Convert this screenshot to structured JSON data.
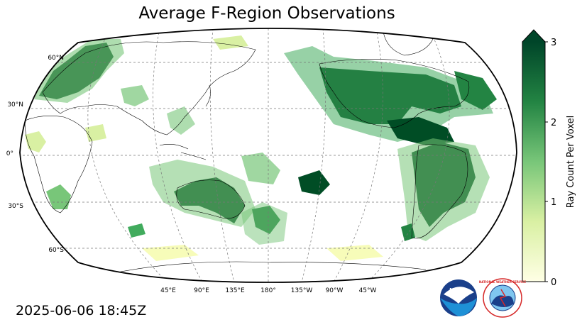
{
  "title": "Average F-Region Observations",
  "timestamp": "2025-06-06 18:45Z",
  "lat_labels": [
    "60°N",
    "30°N",
    "0°",
    "30°S",
    "60°S"
  ],
  "lon_labels": [
    "45°E",
    "90°E",
    "135°E",
    "180°",
    "135°W",
    "90°W",
    "45°W"
  ],
  "colorbar": {
    "label": "Ray Count Per Voxel",
    "ticks": [
      "0",
      "1",
      "2",
      "3"
    ],
    "min": 0,
    "max": 3,
    "extend": "max",
    "colors": [
      "#ffffe5",
      "#d9f0a3",
      "#78c679",
      "#238443",
      "#004529"
    ]
  },
  "logos": {
    "noaa_text": "NOAA",
    "nws_text": "NATIONAL WEATHER SERVICE"
  },
  "colors": {
    "land_outline": "#000000",
    "grid": "#777777",
    "high": "#004d25",
    "mid": "#41ab5d",
    "low": "#c2e699",
    "faint": "#f7fcb9"
  }
}
